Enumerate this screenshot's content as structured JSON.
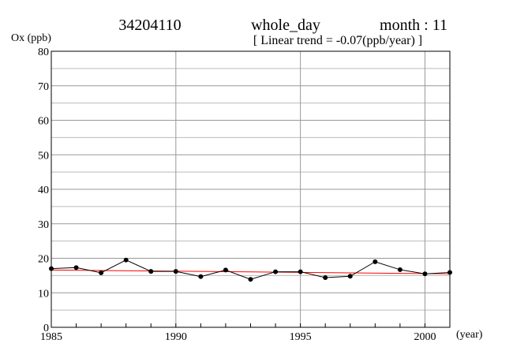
{
  "chart_data": {
    "type": "line",
    "title_parts": [
      "34204110",
      "whole_day",
      "month : 11"
    ],
    "subtitle": "[ Linear trend = -0.07(ppb/year) ]",
    "y_label": "Ox (ppb)",
    "x_label": "(year)",
    "x": [
      1985,
      1986,
      1987,
      1988,
      1989,
      1990,
      1991,
      1992,
      1993,
      1994,
      1995,
      1996,
      1997,
      1998,
      1999,
      2000,
      2001
    ],
    "series": [
      {
        "color": "#000000",
        "values": [
          17.0,
          17.3,
          15.8,
          19.5,
          16.2,
          16.2,
          14.7,
          16.6,
          13.9,
          16.1,
          16.1,
          14.4,
          14.8,
          19.0,
          16.7,
          15.5,
          15.9
        ]
      }
    ],
    "trend": {
      "color": "#ff0000",
      "x": [
        1985,
        2001
      ],
      "values": [
        16.6,
        15.5
      ]
    },
    "xlim": [
      1985,
      2001
    ],
    "xticks": [
      1985,
      1990,
      1995,
      2000
    ],
    "ylim": [
      0,
      80
    ],
    "yticks": [
      0,
      10,
      20,
      30,
      40,
      50,
      60,
      70,
      80
    ],
    "y_minor_ticks": [
      5,
      15,
      25,
      35,
      45,
      55,
      65,
      75
    ],
    "grid": true
  }
}
